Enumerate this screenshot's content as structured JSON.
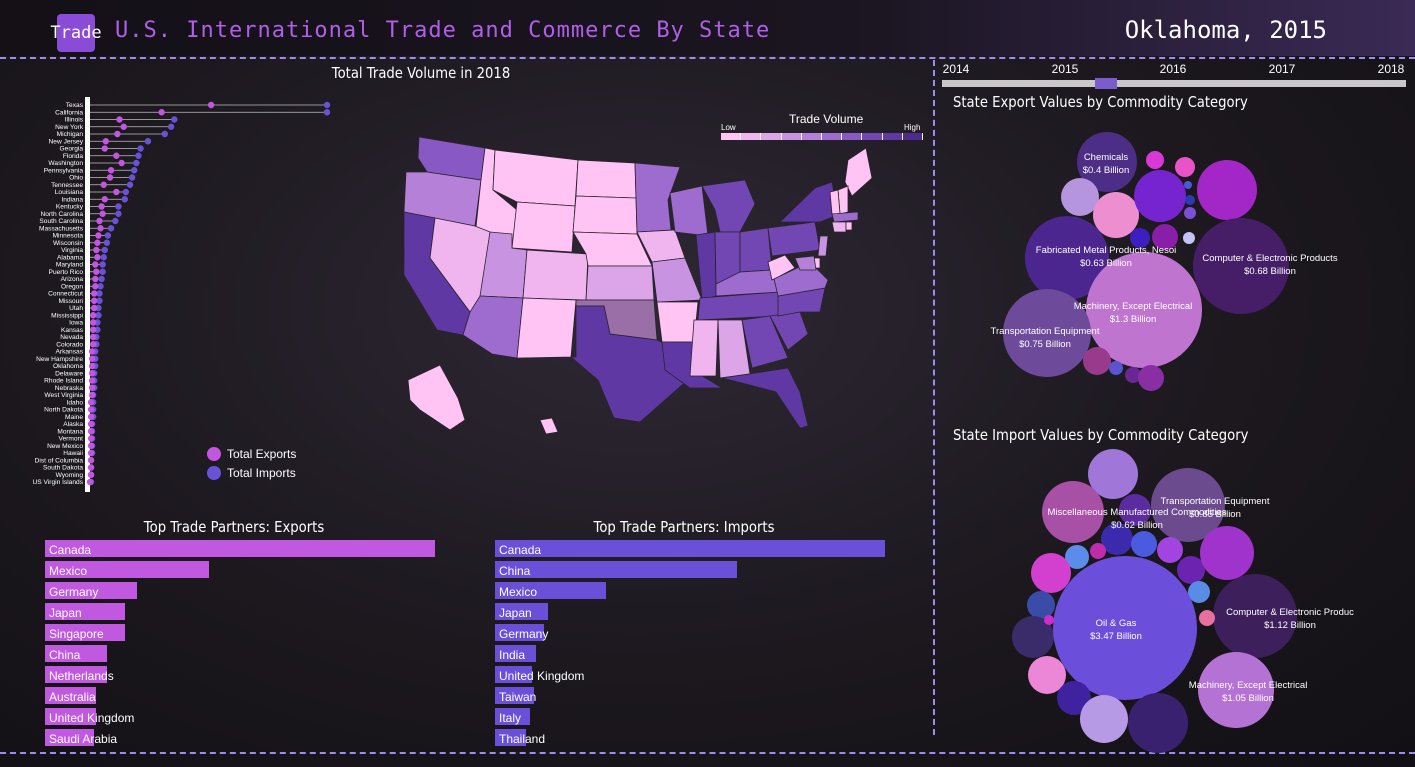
{
  "header": {
    "logo_label": "Trade",
    "title": "U.S. International Trade and Commerce By State",
    "selection": "Oklahoma, 2015"
  },
  "timeline": {
    "years": [
      "2014",
      "2015",
      "2016",
      "2017",
      "2018"
    ],
    "selected_year": "2015"
  },
  "lollipop": {
    "title": "Total Trade Volume in 2018",
    "legend_exports": "Total Exports",
    "legend_imports": "Total Imports",
    "colors": {
      "exports": "#c356e0",
      "imports": "#6a52d8"
    },
    "states": [
      {
        "name": "Texas",
        "exports": 115,
        "imports": 225
      },
      {
        "name": "California",
        "exports": 68,
        "imports": 225
      },
      {
        "name": "Illinois",
        "exports": 28,
        "imports": 80
      },
      {
        "name": "New York",
        "exports": 32,
        "imports": 77
      },
      {
        "name": "Michigan",
        "exports": 26,
        "imports": 71
      },
      {
        "name": "New Jersey",
        "exports": 15,
        "imports": 55
      },
      {
        "name": "Georgia",
        "exports": 14,
        "imports": 48
      },
      {
        "name": "Florida",
        "exports": 25,
        "imports": 46
      },
      {
        "name": "Washington",
        "exports": 30,
        "imports": 44
      },
      {
        "name": "Pennsylvania",
        "exports": 20,
        "imports": 42
      },
      {
        "name": "Ohio",
        "exports": 19,
        "imports": 40
      },
      {
        "name": "Tennessee",
        "exports": 13,
        "imports": 38
      },
      {
        "name": "Louisiana",
        "exports": 25,
        "imports": 34
      },
      {
        "name": "Indiana",
        "exports": 14,
        "imports": 33
      },
      {
        "name": "Kentucky",
        "exports": 11,
        "imports": 27
      },
      {
        "name": "North Carolina",
        "exports": 12,
        "imports": 27
      },
      {
        "name": "South Carolina",
        "exports": 9,
        "imports": 24
      },
      {
        "name": "Massachusetts",
        "exports": 10,
        "imports": 20
      },
      {
        "name": "Minnesota",
        "exports": 8,
        "imports": 17
      },
      {
        "name": "Wisconsin",
        "exports": 7,
        "imports": 16
      },
      {
        "name": "Virginia",
        "exports": 6,
        "imports": 14
      },
      {
        "name": "Alabama",
        "exports": 7,
        "imports": 13
      },
      {
        "name": "Maryland",
        "exports": 5,
        "imports": 12
      },
      {
        "name": "Puerto Rico",
        "exports": 6,
        "imports": 12
      },
      {
        "name": "Arizona",
        "exports": 5,
        "imports": 11
      },
      {
        "name": "Oregon",
        "exports": 5,
        "imports": 10
      },
      {
        "name": "Connecticut",
        "exports": 4,
        "imports": 9
      },
      {
        "name": "Missouri",
        "exports": 4,
        "imports": 9
      },
      {
        "name": "Utah",
        "exports": 4,
        "imports": 8
      },
      {
        "name": "Mississippi",
        "exports": 3,
        "imports": 8
      },
      {
        "name": "Iowa",
        "exports": 3,
        "imports": 7
      },
      {
        "name": "Kansas",
        "exports": 3,
        "imports": 7
      },
      {
        "name": "Nevada",
        "exports": 3,
        "imports": 6
      },
      {
        "name": "Colorado",
        "exports": 3,
        "imports": 6
      },
      {
        "name": "Arkansas",
        "exports": 2,
        "imports": 5
      },
      {
        "name": "New Hampshire",
        "exports": 2,
        "imports": 5
      },
      {
        "name": "Oklahoma",
        "exports": 2,
        "imports": 5
      },
      {
        "name": "Delaware",
        "exports": 2,
        "imports": 4
      },
      {
        "name": "Rhode Island",
        "exports": 2,
        "imports": 4
      },
      {
        "name": "Nebraska",
        "exports": 2,
        "imports": 4
      },
      {
        "name": "West Virginia",
        "exports": 2,
        "imports": 3
      },
      {
        "name": "Idaho",
        "exports": 1,
        "imports": 3
      },
      {
        "name": "North Dakota",
        "exports": 1,
        "imports": 3
      },
      {
        "name": "Maine",
        "exports": 1,
        "imports": 3
      },
      {
        "name": "Alaska",
        "exports": 1,
        "imports": 2
      },
      {
        "name": "Montana",
        "exports": 1,
        "imports": 2
      },
      {
        "name": "Vermont",
        "exports": 1,
        "imports": 2
      },
      {
        "name": "New Mexico",
        "exports": 1,
        "imports": 2
      },
      {
        "name": "Hawaii",
        "exports": 1,
        "imports": 2
      },
      {
        "name": "Dist of Columbia",
        "exports": 1,
        "imports": 1
      },
      {
        "name": "South Dakota",
        "exports": 1,
        "imports": 1
      },
      {
        "name": "Wyoming",
        "exports": 1,
        "imports": 1
      },
      {
        "name": "US Virgin Islands",
        "exports": 0,
        "imports": 1
      }
    ]
  },
  "map": {
    "legend_title": "Trade Volume",
    "legend_low": "Low",
    "legend_high": "High",
    "palette": [
      "#ffc3f4",
      "#f0b4ee",
      "#dca5e8",
      "#c893e0",
      "#b480d8",
      "#9e6ccf",
      "#8858c3",
      "#7347b3",
      "#5f38a3",
      "#4c2a8e"
    ],
    "selected_color": "#9a6fa8"
  },
  "exports_partners": {
    "title": "Top Trade Partners: Exports",
    "color": "#c058e0",
    "partners": [
      {
        "name": "Canada",
        "value": 100
      },
      {
        "name": "Mexico",
        "value": 42
      },
      {
        "name": "Germany",
        "value": 23.5
      },
      {
        "name": "Japan",
        "value": 20.5
      },
      {
        "name": "Singapore",
        "value": 20.5
      },
      {
        "name": "China",
        "value": 16
      },
      {
        "name": "Netherlands",
        "value": 16
      },
      {
        "name": "Australia",
        "value": 13
      },
      {
        "name": "United Kingdom",
        "value": 13
      },
      {
        "name": "Saudi Arabia",
        "value": 12.5
      }
    ]
  },
  "imports_partners": {
    "title": "Top Trade Partners: Imports",
    "color": "#6a4fd8",
    "partners": [
      {
        "name": "Canada",
        "value": 100
      },
      {
        "name": "China",
        "value": 62
      },
      {
        "name": "Mexico",
        "value": 28.5
      },
      {
        "name": "Japan",
        "value": 13.5
      },
      {
        "name": "Germany",
        "value": 12.5
      },
      {
        "name": "India",
        "value": 10.5
      },
      {
        "name": "United Kingdom",
        "value": 9.5
      },
      {
        "name": "Taiwan",
        "value": 10
      },
      {
        "name": "Italy",
        "value": 9
      },
      {
        "name": "Thailand",
        "value": 8
      }
    ]
  },
  "export_bubbles": {
    "title": "State Export Values by Commodity Category",
    "labeled": [
      {
        "name": "Chemicals",
        "value": "$0.4 Billion"
      },
      {
        "name": "Fabricated Metal Products, Nesoi",
        "value": "$0.63 Billion"
      },
      {
        "name": "Computer & Electronic Products",
        "value": "$0.68 Billion"
      },
      {
        "name": "Machinery, Except Electrical",
        "value": "$1.3 Billion"
      },
      {
        "name": "Transportation Equipment",
        "value": "$0.75 Billion"
      }
    ]
  },
  "import_bubbles": {
    "title": "State Import Values by Commodity Category",
    "labeled": [
      {
        "name": "Transportation Equipment",
        "value": "$0.85 Billion"
      },
      {
        "name": "Miscellaneous Manufactured Commodities",
        "value": "$0.62 Billion"
      },
      {
        "name": "Oil & Gas",
        "value": "$3.47 Billion"
      },
      {
        "name": "Computer & Electronic Produc",
        "value": "$1.12 Billion"
      },
      {
        "name": "Machinery, Except Electrical",
        "value": "$1.05 Billion"
      }
    ]
  }
}
